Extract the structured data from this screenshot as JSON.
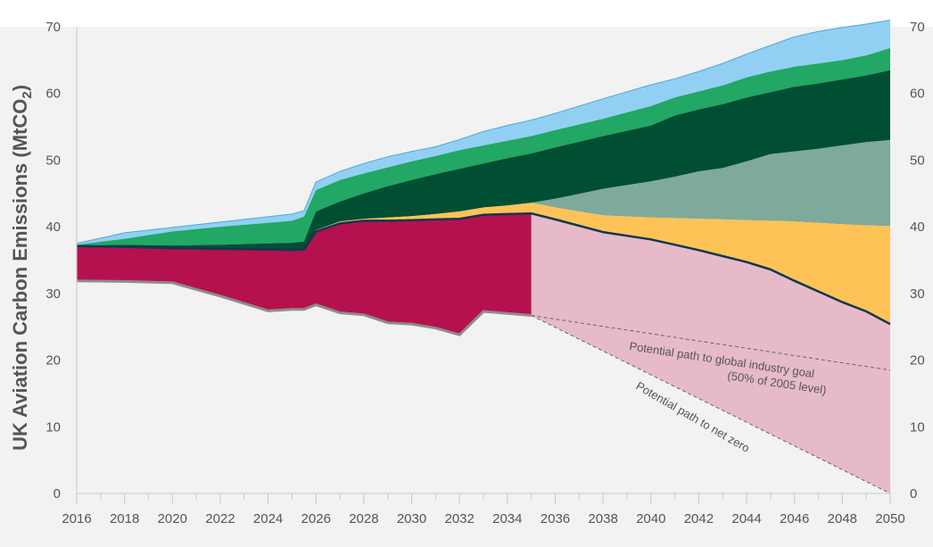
{
  "chart_data": {
    "type": "area",
    "title": "",
    "xlabel": "",
    "ylabel": "UK Aviation Carbon Emissions (MtCO",
    "ylabel_subscript": "2",
    "ylabel_close": ")",
    "xlim": [
      2016,
      2050
    ],
    "ylim": [
      0,
      70
    ],
    "x_ticks": [
      "2016",
      "2018",
      "2020",
      "2022",
      "2024",
      "2026",
      "2028",
      "2030",
      "2032",
      "2034",
      "2036",
      "2038",
      "2040",
      "2042",
      "2044",
      "2046",
      "2048",
      "2050"
    ],
    "y_ticks": [
      "0",
      "10",
      "20",
      "30",
      "40",
      "50",
      "60",
      "70"
    ],
    "colors": {
      "plot_bg": "#f2f2f2",
      "red": "#b5114f",
      "pink": "#e6bac9",
      "yellow": "#fec357",
      "sage": "#7fa99a",
      "darkgreen": "#004f32",
      "green": "#22a765",
      "lightblue": "#92d0f3",
      "netline": "#0e3752",
      "grey": "#8d8d8d",
      "dashed": "#666666"
    },
    "x": [
      2016,
      2018,
      2020,
      2022,
      2024,
      2025,
      2025.5,
      2026,
      2027,
      2028,
      2029,
      2030,
      2031,
      2032,
      2033,
      2034,
      2035,
      2036,
      2038,
      2040,
      2041,
      2042,
      2043,
      2044,
      2045,
      2046,
      2047,
      2048,
      2049,
      2050
    ],
    "series": [
      {
        "name": "bottom-grey",
        "color": "#8d8d8d",
        "values": [
          31.9,
          31.8,
          31.6,
          29.6,
          27.4,
          27.6,
          27.6,
          28.3,
          27.1,
          26.8,
          25.6,
          25.4,
          24.8,
          23.8,
          27.3,
          27.0,
          26.7,
          null,
          null,
          null,
          null,
          null,
          null,
          null,
          null,
          null,
          null,
          null,
          null,
          null
        ]
      },
      {
        "name": "red",
        "color": "#b5114f",
        "values": [
          37.1,
          37.0,
          36.8,
          36.7,
          36.6,
          36.5,
          36.6,
          39.3,
          40.5,
          40.9,
          40.9,
          41.0,
          41.1,
          41.2,
          41.8,
          41.9,
          42.0,
          null,
          null,
          null,
          null,
          null,
          null,
          null,
          null,
          null,
          null,
          null,
          null,
          null
        ]
      },
      {
        "name": "net-emissions-line",
        "color": "#0e3752",
        "values": [
          37.1,
          37.0,
          36.8,
          36.7,
          36.6,
          36.5,
          36.6,
          39.3,
          40.5,
          40.9,
          40.9,
          41.0,
          41.1,
          41.2,
          41.8,
          41.9,
          42.0,
          41.1,
          39.2,
          38.1,
          37.3,
          36.5,
          35.6,
          34.7,
          33.6,
          31.9,
          30.3,
          28.7,
          27.3,
          25.4
        ]
      },
      {
        "name": "yellow",
        "color": "#fec357",
        "values": [
          37.1,
          37.0,
          36.8,
          36.7,
          36.6,
          36.5,
          36.6,
          39.5,
          40.8,
          41.2,
          41.4,
          41.6,
          41.9,
          42.3,
          42.9,
          43.2,
          43.6,
          42.9,
          41.7,
          41.4,
          41.3,
          41.2,
          41.1,
          41.0,
          40.9,
          40.8,
          40.6,
          40.4,
          40.2,
          40.1
        ]
      },
      {
        "name": "sage",
        "color": "#7fa99a",
        "values": [
          37.1,
          37.0,
          36.8,
          36.7,
          36.6,
          36.5,
          36.6,
          39.5,
          40.8,
          41.2,
          41.4,
          41.6,
          41.9,
          42.3,
          42.9,
          43.2,
          43.6,
          44.2,
          45.7,
          46.8,
          47.5,
          48.3,
          48.8,
          49.8,
          50.9,
          51.3,
          51.7,
          52.2,
          52.7,
          53.0
        ]
      },
      {
        "name": "dark-green",
        "color": "#004f32",
        "values": [
          37.2,
          37.3,
          37.2,
          37.3,
          37.5,
          37.6,
          37.8,
          42.3,
          43.8,
          45.0,
          46.1,
          47.0,
          47.9,
          48.7,
          49.5,
          50.3,
          51.0,
          51.9,
          53.6,
          55.2,
          56.7,
          57.6,
          58.4,
          59.4,
          60.2,
          61.0,
          61.5,
          62.1,
          62.7,
          63.5
        ]
      },
      {
        "name": "green",
        "color": "#22a765",
        "values": [
          37.3,
          38.2,
          39.3,
          40.0,
          40.6,
          40.9,
          41.5,
          45.5,
          47.0,
          48.0,
          48.9,
          49.8,
          50.6,
          51.5,
          52.2,
          52.9,
          53.6,
          54.5,
          56.2,
          58.1,
          59.4,
          60.3,
          61.2,
          62.4,
          63.3,
          64.0,
          64.5,
          65.0,
          65.7,
          66.8
        ]
      },
      {
        "name": "light-blue",
        "color": "#92d0f3",
        "values": [
          37.5,
          39.1,
          39.9,
          40.7,
          41.5,
          41.9,
          42.4,
          46.7,
          48.3,
          49.5,
          50.5,
          51.3,
          52.0,
          53.1,
          54.3,
          55.2,
          56.0,
          57.0,
          59.2,
          61.3,
          62.2,
          63.3,
          64.5,
          65.9,
          67.2,
          68.5,
          69.3,
          69.9,
          70.4,
          71.0
        ]
      },
      {
        "name": "potential-net-zero-path",
        "color": "#666666",
        "x": [
          2035,
          2050
        ],
        "values": [
          26.7,
          0
        ]
      },
      {
        "name": "potential-global-goal-path",
        "color": "#666666",
        "x": [
          2035,
          2050
        ],
        "values": [
          26.7,
          18.5
        ]
      }
    ],
    "annotations": [
      {
        "text": "Potential path to global industry goal"
      },
      {
        "text": "(50% of 2005 level)"
      },
      {
        "text": "Potential path to net zero"
      }
    ]
  }
}
